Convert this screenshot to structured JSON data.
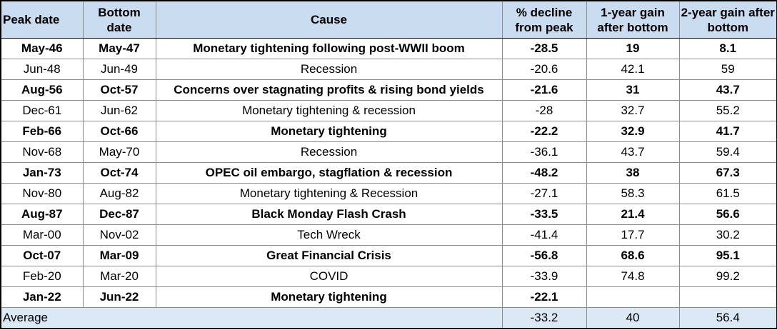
{
  "table": {
    "headers": {
      "peak_date": "Peak date",
      "bottom_date": "Bottom date",
      "cause": "Cause",
      "decline": "% decline from peak",
      "gain_1y": "1-year gain after bottom",
      "gain_2y": "2-year gain after bottom"
    },
    "rows": [
      {
        "peak": "May-46",
        "bottom": "May-47",
        "cause": "Monetary tightening following post-WWII boom",
        "decline": "-28.5",
        "gain_1y": "19",
        "gain_2y": "8.1"
      },
      {
        "peak": "Jun-48",
        "bottom": "Jun-49",
        "cause": "Recession",
        "decline": "-20.6",
        "gain_1y": "42.1",
        "gain_2y": "59"
      },
      {
        "peak": "Aug-56",
        "bottom": "Oct-57",
        "cause": "Concerns over stagnating profits & rising bond yields",
        "decline": "-21.6",
        "gain_1y": "31",
        "gain_2y": "43.7"
      },
      {
        "peak": "Dec-61",
        "bottom": "Jun-62",
        "cause": "Monetary tightening & recession",
        "decline": "-28",
        "gain_1y": "32.7",
        "gain_2y": "55.2"
      },
      {
        "peak": "Feb-66",
        "bottom": "Oct-66",
        "cause": "Monetary tightening",
        "decline": "-22.2",
        "gain_1y": "32.9",
        "gain_2y": "41.7"
      },
      {
        "peak": "Nov-68",
        "bottom": "May-70",
        "cause": "Recession",
        "decline": "-36.1",
        "gain_1y": "43.7",
        "gain_2y": "59.4"
      },
      {
        "peak": "Jan-73",
        "bottom": "Oct-74",
        "cause": "OPEC oil embargo, stagflation & recession",
        "decline": "-48.2",
        "gain_1y": "38",
        "gain_2y": "67.3"
      },
      {
        "peak": "Nov-80",
        "bottom": "Aug-82",
        "cause": "Monetary tightening & Recession",
        "decline": "-27.1",
        "gain_1y": "58.3",
        "gain_2y": "61.5"
      },
      {
        "peak": "Aug-87",
        "bottom": "Dec-87",
        "cause": "Black Monday Flash Crash",
        "decline": "-33.5",
        "gain_1y": "21.4",
        "gain_2y": "56.6"
      },
      {
        "peak": "Mar-00",
        "bottom": "Nov-02",
        "cause": "Tech Wreck",
        "decline": "-41.4",
        "gain_1y": "17.7",
        "gain_2y": "30.2"
      },
      {
        "peak": "Oct-07",
        "bottom": "Mar-09",
        "cause": "Great Financial Crisis",
        "decline": "-56.8",
        "gain_1y": "68.6",
        "gain_2y": "95.1"
      },
      {
        "peak": "Feb-20",
        "bottom": "Mar-20",
        "cause": "COVID",
        "decline": "-33.9",
        "gain_1y": "74.8",
        "gain_2y": "99.2"
      },
      {
        "peak": "Jan-22",
        "bottom": "Jun-22",
        "cause": "Monetary tightening",
        "decline": "-22.1",
        "gain_1y": "",
        "gain_2y": ""
      }
    ],
    "average": {
      "label": "Average",
      "decline": "-33.2",
      "gain_1y": "40",
      "gain_2y": "56.4"
    }
  }
}
